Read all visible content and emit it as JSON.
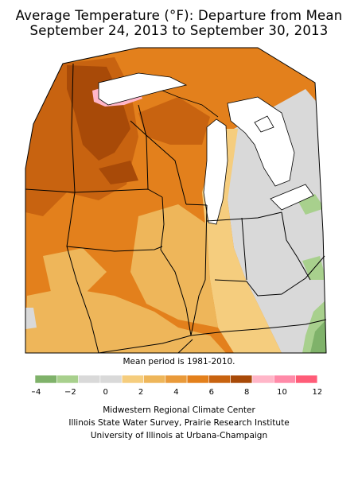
{
  "title_line1": "Average Temperature (°F): Departure from Mean",
  "title_line2": "September 24, 2013 to September 30, 2013",
  "mean_note": "Mean period is 1981-2010.",
  "legend": {
    "colors": [
      "#7fb26a",
      "#a8d08d",
      "#d9d9d9",
      "#d9d9d9",
      "#f5cd7e",
      "#eeb65a",
      "#e99a3a",
      "#e3801c",
      "#c86310",
      "#a84a08",
      "#ffb6c8",
      "#ff8aa8",
      "#ff5c78"
    ],
    "tick_labels": [
      "−4",
      "−2",
      "0",
      "2",
      "4",
      "6",
      "8",
      "10",
      "12"
    ]
  },
  "credits": {
    "line1": "Midwestern Regional Climate Center",
    "line2": "Illinois State Water Survey, Prairie Research Institute",
    "line3": "University of Illinois at Urbana-Champaign"
  }
}
